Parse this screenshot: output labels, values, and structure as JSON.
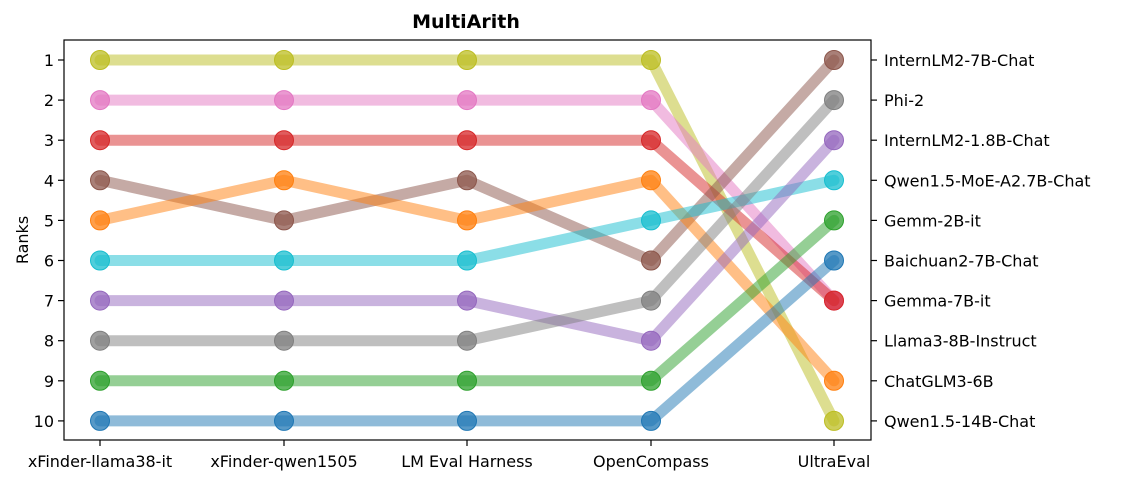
{
  "chart_data": {
    "type": "line",
    "title": "MultiArith",
    "xlabel": "",
    "ylabel": "Ranks",
    "categories": [
      "xFinder-llama38-it",
      "xFinder-qwen1505",
      "LM Eval Harness",
      "OpenCompass",
      "UltraEval"
    ],
    "yticks": [
      "1",
      "2",
      "3",
      "4",
      "5",
      "6",
      "7",
      "8",
      "9",
      "10"
    ],
    "ylim": [
      10,
      1
    ],
    "right_labels": [
      "InternLM2-7B-Chat",
      "Phi-2",
      "InternLM2-1.8B-Chat",
      "Qwen1.5-MoE-A2.7B-Chat",
      "Gemm-2B-it",
      "Baichuan2-7B-Chat",
      "Gemma-7B-it",
      "Llama3-8B-Instruct",
      "ChatGLM3-6B",
      "Qwen1.5-14B-Chat"
    ],
    "series": [
      {
        "color": "#bcbd22",
        "values": [
          1,
          1,
          1,
          1,
          10
        ]
      },
      {
        "color": "#e377c2",
        "values": [
          2,
          2,
          2,
          2,
          7
        ]
      },
      {
        "color": "#d62728",
        "values": [
          3,
          3,
          3,
          3,
          7
        ]
      },
      {
        "color": "#8c564b",
        "values": [
          4,
          5,
          4,
          6,
          1
        ]
      },
      {
        "color": "#ff7f0e",
        "values": [
          5,
          4,
          5,
          4,
          9
        ]
      },
      {
        "color": "#17becf",
        "values": [
          6,
          6,
          6,
          5,
          4
        ]
      },
      {
        "color": "#9467bd",
        "values": [
          7,
          7,
          7,
          8,
          3
        ]
      },
      {
        "color": "#7f7f7f",
        "values": [
          8,
          8,
          8,
          7,
          2
        ]
      },
      {
        "color": "#2ca02c",
        "values": [
          9,
          9,
          9,
          9,
          5
        ]
      },
      {
        "color": "#1f77b4",
        "values": [
          10,
          10,
          10,
          10,
          6
        ]
      }
    ],
    "grid": false,
    "legend": "none"
  }
}
